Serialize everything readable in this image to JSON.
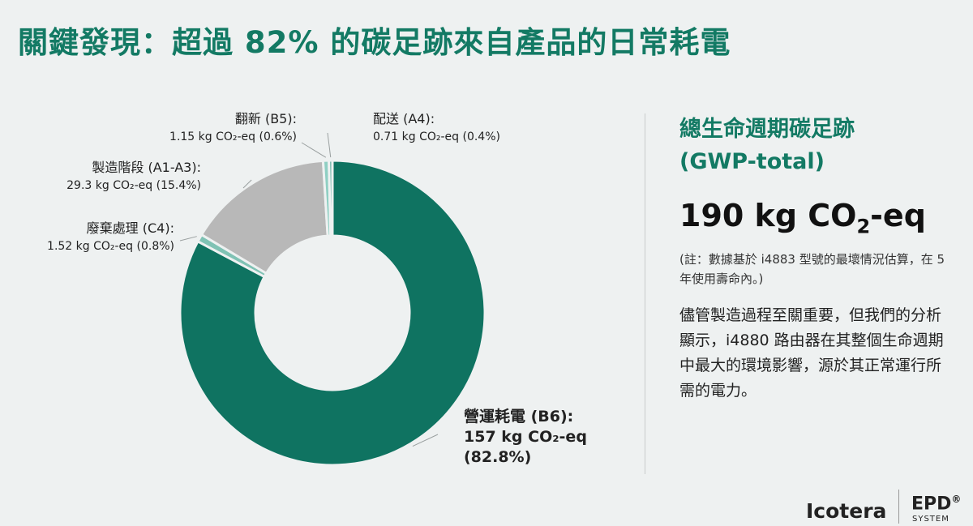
{
  "title": "關鍵發現：超過 82% 的碳足跡來自產品的日常耗電",
  "chart_data": {
    "type": "pie",
    "donut": true,
    "slices": [
      {
        "name": "營運耗電 (B6):",
        "value": 157,
        "percent": 82.8,
        "label_value": "157 kg CO₂-eq",
        "label_percent": "(82.8%)",
        "color": "#0f7361",
        "label_lines": [
          "營運耗電 (B6):",
          "157 kg CO₂-eq",
          "(82.8%)"
        ]
      },
      {
        "name": "廢棄處理 (C4):",
        "value": 1.52,
        "percent": 0.8,
        "label_value": "1.52 kg CO₂-eq (0.8%)",
        "color": "#7fc2b4",
        "label_lines": [
          "廢棄處理 (C4):",
          "1.52 kg CO₂-eq (0.8%)"
        ]
      },
      {
        "name": "製造階段 (A1-A3):",
        "value": 29.3,
        "percent": 15.4,
        "label_value": "29.3 kg CO₂-eq (15.4%)",
        "color": "#b8b8b8",
        "label_lines": [
          "製造階段 (A1-A3):",
          "29.3 kg CO₂-eq (15.4%)"
        ]
      },
      {
        "name": "翻新 (B5):",
        "value": 1.15,
        "percent": 0.6,
        "label_value": "1.15 kg CO₂-eq (0.6%)",
        "color": "#8fcfc3",
        "label_lines": [
          "翻新 (B5):",
          "1.15 kg CO₂-eq (0.6%)"
        ]
      },
      {
        "name": "配送 (A4):",
        "value": 0.71,
        "percent": 0.4,
        "label_value": "0.71 kg CO₂-eq (0.4%)",
        "color": "#6fb5a7",
        "label_lines": [
          "配送 (A4):",
          "0.71 kg CO₂-eq (0.4%)"
        ]
      }
    ]
  },
  "panel": {
    "heading": "總生命週期碳足跡",
    "heading_sub": "(GWP-total)",
    "value_prefix": "190 kg CO",
    "value_subscript": "2",
    "value_suffix": "-eq",
    "note": "(註：數據基於 i4883 型號的最壞情況估算，在 5 年使用壽命內。)",
    "body": "儘管製造過程至關重要，但我們的分析顯示，i4880 路由器在其整個生命週期中最大的環境影響，源於其正常運行所需的電力。"
  },
  "footer": {
    "brand": "Icotera",
    "epd": "EPD",
    "epd_mark": "®",
    "epd_system": "SYSTEM"
  }
}
